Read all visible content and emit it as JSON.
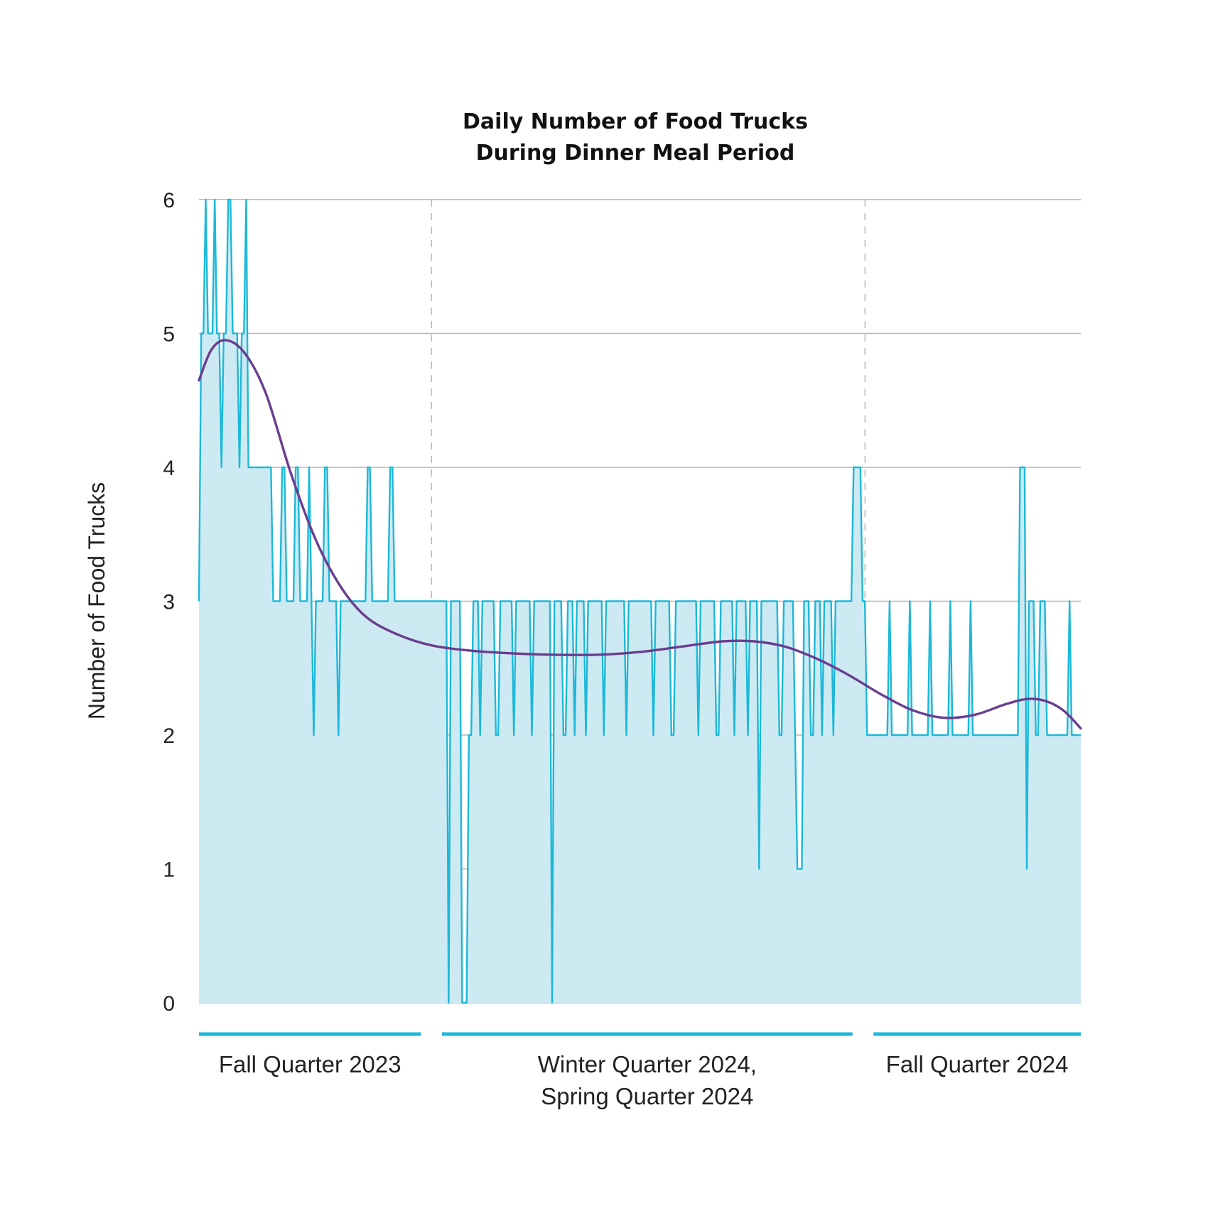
{
  "chart_data": {
    "type": "area",
    "title": [
      "Daily Number of Food Trucks",
      "During Dinner Meal Period"
    ],
    "ylabel": "Number of Food Trucks",
    "xlabel": "",
    "ylim": [
      0,
      6
    ],
    "yticks": [
      "0",
      "1",
      "2",
      "3",
      "4",
      "5",
      "6"
    ],
    "grid": true,
    "colors": {
      "daily_line": "#1cb8d8",
      "daily_fill": "#cdeaf3",
      "trend_line": "#6a3d8f",
      "grid": "#b5b5b5",
      "period_bar": "#1cb8d8",
      "divider": "#bdbdbd"
    },
    "periods": [
      {
        "label": [
          "Fall Quarter 2023"
        ],
        "start_day": 0,
        "end_day": 106
      },
      {
        "label": [
          "Winter Quarter 2024,",
          "Spring Quarter 2024"
        ],
        "start_day": 116,
        "end_day": 312
      },
      {
        "label": [
          "Fall Quarter 2024"
        ],
        "start_day": 322,
        "end_day": 421
      }
    ],
    "dividers_at_day": [
      111,
      318
    ],
    "x_day_range": [
      0,
      421
    ],
    "series": [
      {
        "values": [
          3,
          5,
          5,
          6,
          5,
          5,
          5,
          6,
          5,
          5,
          4,
          5,
          5,
          6,
          6,
          5,
          5,
          5,
          4,
          5,
          5,
          6,
          4,
          4,
          4,
          4,
          4,
          4,
          4,
          4,
          4,
          4,
          4,
          3,
          3,
          3,
          3,
          4,
          4,
          3,
          3,
          3,
          3,
          4,
          4,
          3,
          3,
          3,
          3,
          4,
          3,
          2,
          3,
          3,
          3,
          3,
          4,
          4,
          3,
          3,
          3,
          3,
          2,
          3,
          3,
          3,
          3,
          3,
          3,
          3,
          3,
          3,
          3,
          3,
          3,
          4,
          4,
          3,
          3,
          3,
          3,
          3,
          3,
          3,
          3,
          4,
          4,
          3,
          3,
          3,
          3,
          3,
          3,
          3,
          3,
          3,
          3,
          3,
          3,
          3,
          3,
          3,
          3,
          3,
          3,
          3,
          3,
          3,
          3,
          3,
          3,
          0,
          3,
          3,
          3,
          3,
          3,
          0,
          0,
          0,
          2,
          2,
          3,
          3,
          3,
          2,
          3,
          3,
          3,
          3,
          3,
          3,
          2,
          2,
          3,
          3,
          3,
          3,
          3,
          3,
          2,
          3,
          3,
          3,
          3,
          3,
          3,
          3,
          2,
          3,
          3,
          3,
          3,
          3,
          3,
          3,
          3,
          0,
          3,
          3,
          3,
          3,
          2,
          2,
          3,
          3,
          3,
          2,
          3,
          3,
          3,
          3,
          2,
          3,
          3,
          3,
          3,
          3,
          3,
          3,
          2,
          3,
          3,
          3,
          3,
          3,
          3,
          3,
          3,
          3,
          2,
          3,
          3,
          3,
          3,
          3,
          3,
          3,
          3,
          3,
          3,
          3,
          2,
          3,
          3,
          3,
          3,
          3,
          3,
          3,
          2,
          2,
          3,
          3,
          3,
          3,
          3,
          3,
          3,
          3,
          3,
          3,
          2,
          3,
          3,
          3,
          3,
          3,
          3,
          3,
          2,
          2,
          3,
          3,
          3,
          3,
          3,
          3,
          2,
          3,
          3,
          3,
          3,
          3,
          2,
          3,
          3,
          3,
          3,
          1,
          3,
          3,
          3,
          3,
          3,
          3,
          3,
          3,
          2,
          2,
          3,
          3,
          3,
          3,
          3,
          2,
          1,
          1,
          1,
          3,
          3,
          3,
          2,
          2,
          3,
          3,
          3,
          2,
          3,
          3,
          3,
          3,
          2,
          3,
          3,
          3,
          3,
          3,
          3,
          3,
          3,
          4,
          4,
          4,
          4,
          3,
          3,
          2,
          2,
          2,
          2,
          2,
          2,
          2,
          2,
          2,
          2,
          3,
          2,
          2,
          2,
          2,
          2,
          2,
          2,
          2,
          3,
          2,
          2,
          2,
          2,
          2,
          2,
          2,
          2,
          3,
          2,
          2,
          2,
          2,
          2,
          2,
          2,
          2,
          3,
          2,
          2,
          2,
          2,
          2,
          2,
          2,
          2,
          3,
          2,
          2,
          2,
          2,
          2,
          2,
          2,
          2,
          2,
          2,
          2,
          2,
          2,
          2,
          2,
          2,
          2,
          2,
          2,
          2,
          2,
          4,
          4,
          4,
          1,
          3,
          3,
          3,
          2,
          2,
          3,
          3,
          3,
          2,
          2,
          2,
          2,
          2,
          2,
          2,
          2,
          2,
          2,
          3,
          2,
          2,
          2,
          2,
          2
        ]
      },
      {
        "points": [
          [
            0,
            4.65
          ],
          [
            6,
            4.88
          ],
          [
            13,
            4.95
          ],
          [
            22,
            4.85
          ],
          [
            32,
            4.55
          ],
          [
            44,
            3.95
          ],
          [
            56,
            3.45
          ],
          [
            68,
            3.1
          ],
          [
            80,
            2.88
          ],
          [
            95,
            2.75
          ],
          [
            111,
            2.67
          ],
          [
            130,
            2.63
          ],
          [
            150,
            2.61
          ],
          [
            170,
            2.6
          ],
          [
            190,
            2.6
          ],
          [
            210,
            2.62
          ],
          [
            230,
            2.66
          ],
          [
            250,
            2.7
          ],
          [
            265,
            2.7
          ],
          [
            280,
            2.66
          ],
          [
            295,
            2.57
          ],
          [
            310,
            2.45
          ],
          [
            325,
            2.31
          ],
          [
            340,
            2.19
          ],
          [
            355,
            2.13
          ],
          [
            370,
            2.15
          ],
          [
            385,
            2.23
          ],
          [
            396,
            2.27
          ],
          [
            405,
            2.25
          ],
          [
            413,
            2.18
          ],
          [
            421,
            2.05
          ]
        ]
      }
    ]
  }
}
